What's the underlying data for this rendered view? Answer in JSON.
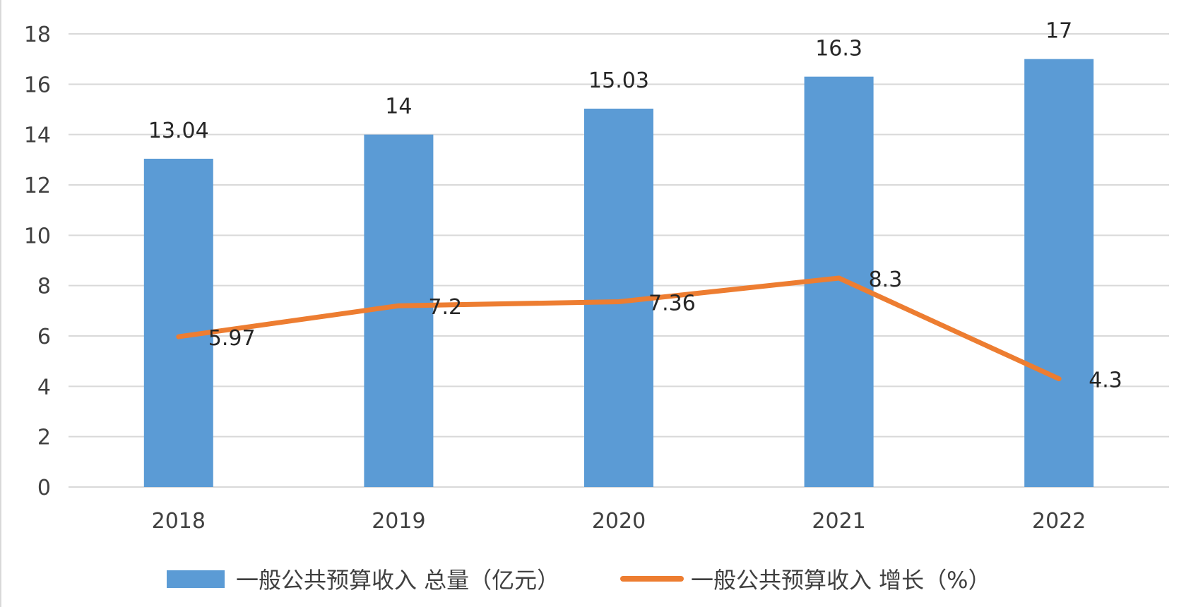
{
  "chart_data": {
    "type": "bar+line",
    "categories": [
      "2018",
      "2019",
      "2020",
      "2021",
      "2022"
    ],
    "series": [
      {
        "name": "一般公共预算收入 总量（亿元）",
        "type": "bar",
        "color": "#5B9BD5",
        "values": [
          13.04,
          14,
          15.03,
          16.3,
          17
        ],
        "labels": [
          "13.04",
          "14",
          "15.03",
          "16.3",
          "17"
        ]
      },
      {
        "name": "一般公共预算收入 增长（%）",
        "type": "line",
        "color": "#ED7D31",
        "values": [
          5.97,
          7.2,
          7.36,
          8.3,
          4.3
        ],
        "labels": [
          "5.97",
          "7.2",
          "7.36",
          "8.3",
          "4.3"
        ]
      }
    ],
    "ylim": [
      0,
      18
    ],
    "yticks": [
      "0",
      "2",
      "4",
      "6",
      "8",
      "10",
      "12",
      "14",
      "16",
      "18"
    ],
    "grid": true,
    "legend": "bottom"
  }
}
